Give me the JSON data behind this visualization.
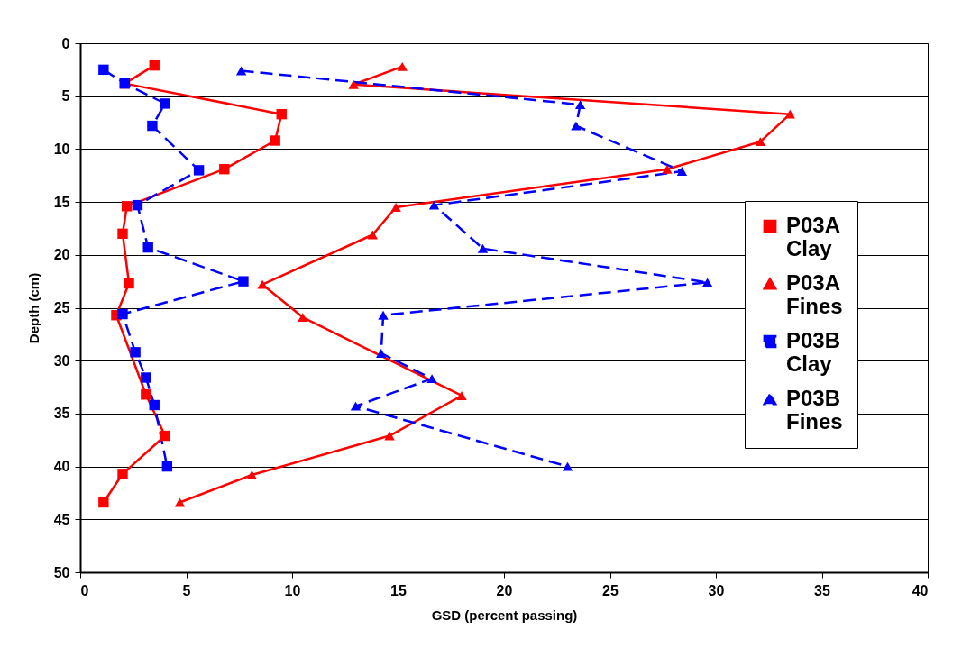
{
  "chart_data": {
    "type": "line",
    "xlabel": "GSD (percent passing)",
    "ylabel": "Depth (cm)",
    "xlim": [
      0,
      40
    ],
    "xticks": [
      0,
      5,
      10,
      15,
      20,
      25,
      30,
      35,
      40
    ],
    "ylim": [
      50,
      0
    ],
    "yticks": [
      0,
      5,
      10,
      15,
      20,
      25,
      30,
      35,
      40,
      45,
      50
    ],
    "grid": "y",
    "legend": "right",
    "series": [
      {
        "name": "P03A Clay",
        "color": "#ff0000",
        "marker": "square",
        "line_style": "solid",
        "x": [
          3.5,
          2.1,
          9.5,
          9.2,
          6.8,
          2.2,
          2.0,
          2.3,
          1.7,
          3.1,
          4.0,
          2.0,
          1.1
        ],
        "values": [
          2.1,
          3.8,
          6.7,
          9.2,
          11.9,
          15.4,
          18.0,
          22.7,
          25.7,
          33.2,
          37.1,
          40.7,
          43.4
        ]
      },
      {
        "name": "P03A Fines",
        "color": "#ff0000",
        "marker": "triangle",
        "line_style": "solid",
        "x": [
          15.2,
          12.9,
          33.5,
          32.1,
          27.7,
          14.9,
          13.8,
          8.6,
          10.5,
          18.0,
          14.6,
          8.1,
          4.7
        ],
        "values": [
          2.2,
          3.9,
          6.7,
          9.3,
          11.9,
          15.5,
          18.1,
          22.8,
          25.9,
          33.3,
          37.1,
          40.8,
          43.4
        ]
      },
      {
        "name": "P03B Clay",
        "color": "#0000ff",
        "marker": "square",
        "line_style": "dashed",
        "x": [
          1.1,
          2.1,
          4.0,
          3.4,
          5.6,
          2.7,
          3.2,
          7.7,
          2.0,
          2.6,
          3.1,
          3.5,
          4.1
        ],
        "values": [
          2.5,
          3.8,
          5.7,
          7.8,
          12.0,
          15.3,
          19.3,
          22.5,
          25.6,
          29.2,
          31.6,
          34.2,
          40.0
        ]
      },
      {
        "name": "P03B Fines",
        "color": "#0000ff",
        "marker": "triangle",
        "line_style": "dashed",
        "x": [
          7.6,
          23.6,
          23.4,
          28.4,
          16.7,
          19.0,
          29.6,
          14.3,
          14.2,
          16.6,
          13.0,
          23.0
        ],
        "values": [
          2.6,
          5.8,
          7.8,
          12.1,
          15.3,
          19.4,
          22.6,
          25.7,
          29.3,
          31.7,
          34.3,
          40.0
        ]
      }
    ]
  }
}
